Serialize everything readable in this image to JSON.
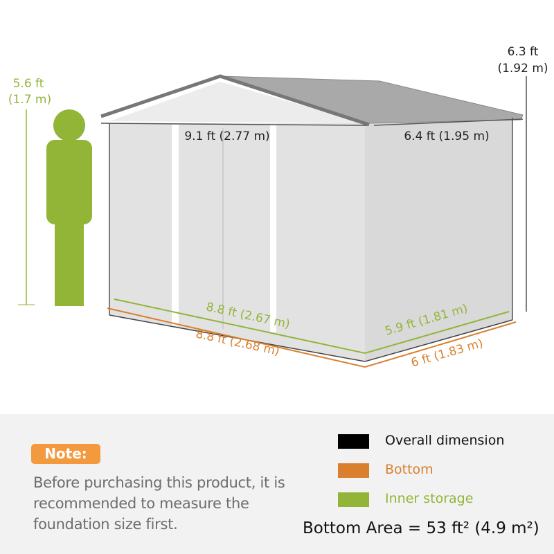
{
  "person_height": {
    "ft": "5.6 ft",
    "m": "(1.7 m)"
  },
  "overall_height": {
    "ft": "6.3 ft",
    "m": "(1.92 m)"
  },
  "overall_width": "9.1 ft (2.77 m)",
  "overall_depth": "6.4 ft (1.95 m)",
  "inner_width": "8.8 ft (2.67 m)",
  "inner_depth": "5.9 ft (1.81 m)",
  "bottom_width": "8.8 ft (2.68 m)",
  "bottom_depth": "6 ft (1.83 m)",
  "note": {
    "badge": "Note:",
    "text": "Before purchasing this product, it is recommended to measure the foundation size first."
  },
  "legend": [
    {
      "label": "Overall dimension",
      "color": "#000000"
    },
    {
      "label": "Bottom",
      "color": "#d97f2e"
    },
    {
      "label": "Inner storage",
      "color": "#92b538"
    }
  ],
  "bottom_area": "Bottom Area = 53 ft² (4.9 m²)",
  "colors": {
    "green": "#92b538",
    "orange": "#d97f2e",
    "note_badge": "#f49a3e",
    "shed_wall": "#dcdcdc",
    "roof": "#aaaaaa"
  }
}
